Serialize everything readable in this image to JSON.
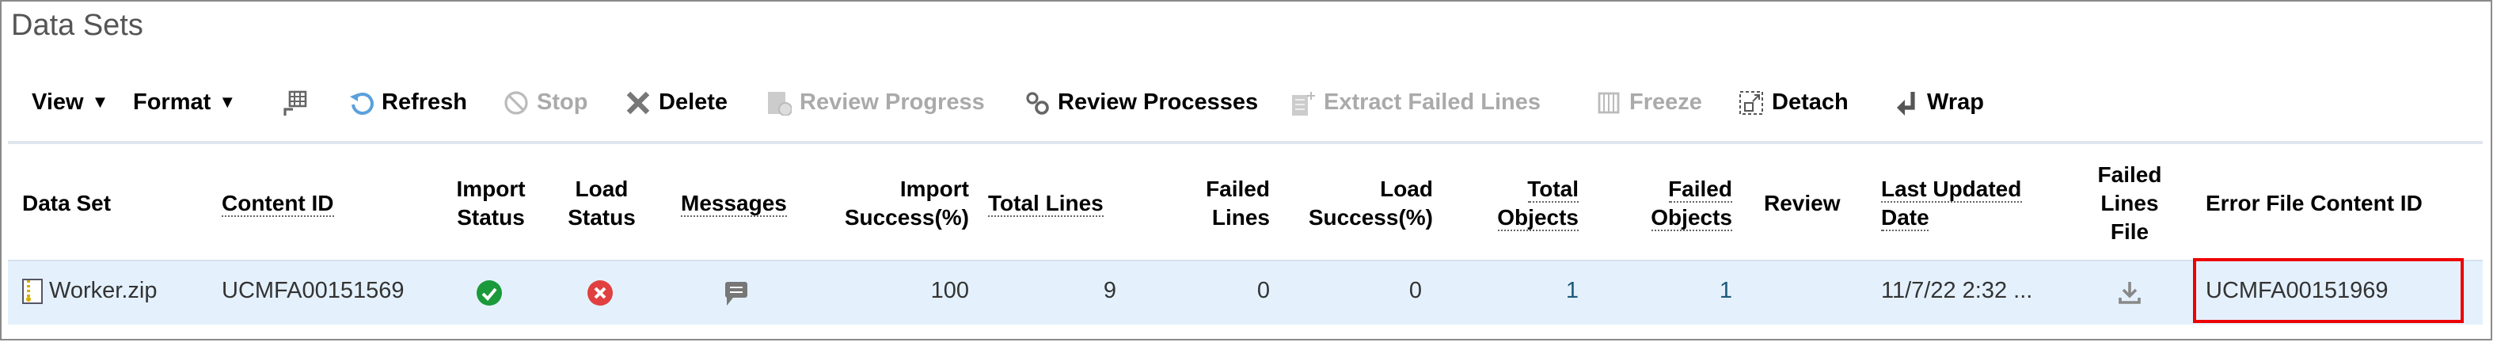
{
  "title": "Data Sets",
  "toolbar": {
    "view": "View",
    "format": "Format",
    "refresh": "Refresh",
    "stop": "Stop",
    "delete": "Delete",
    "review_progress": "Review Progress",
    "review_processes": "Review Processes",
    "extract_failed_lines": "Extract Failed Lines",
    "freeze": "Freeze",
    "detach": "Detach",
    "wrap": "Wrap"
  },
  "columns": {
    "data_set": "Data Set",
    "content_id": "Content ID",
    "import_status_1": "Import",
    "import_status_2": "Status",
    "load_status_1": "Load",
    "load_status_2": "Status",
    "messages": "Messages",
    "import_success_1": "Import",
    "import_success_2": "Success(%)",
    "total_lines": "Total Lines",
    "failed_lines_1": "Failed",
    "failed_lines_2": "Lines",
    "load_success_1": "Load",
    "load_success_2": "Success(%)",
    "total_objects_1": "Total",
    "total_objects_2": "Objects",
    "failed_objects_1": "Failed",
    "failed_objects_2": "Objects",
    "review": "Review",
    "last_updated_1": "Last Updated",
    "last_updated_2": "Date",
    "failed_lines_file_1": "Failed",
    "failed_lines_file_2": "Lines",
    "failed_lines_file_3": "File",
    "error_file_content_id": "Error File Content ID"
  },
  "row": {
    "data_set": "Worker.zip",
    "content_id": "UCMFA00151569",
    "import_status": "success",
    "load_status": "error",
    "import_success": "100",
    "total_lines": "9",
    "failed_lines": "0",
    "load_success": "0",
    "total_objects": "1",
    "failed_objects": "1",
    "last_updated": "11/7/22 2:32 ...",
    "error_file_content_id": "UCMFA00151969"
  },
  "colors": {
    "success": "#1a9a3a",
    "error": "#e0403f",
    "highlight": "#ee0000",
    "row_selected": "#e4f1fd"
  }
}
